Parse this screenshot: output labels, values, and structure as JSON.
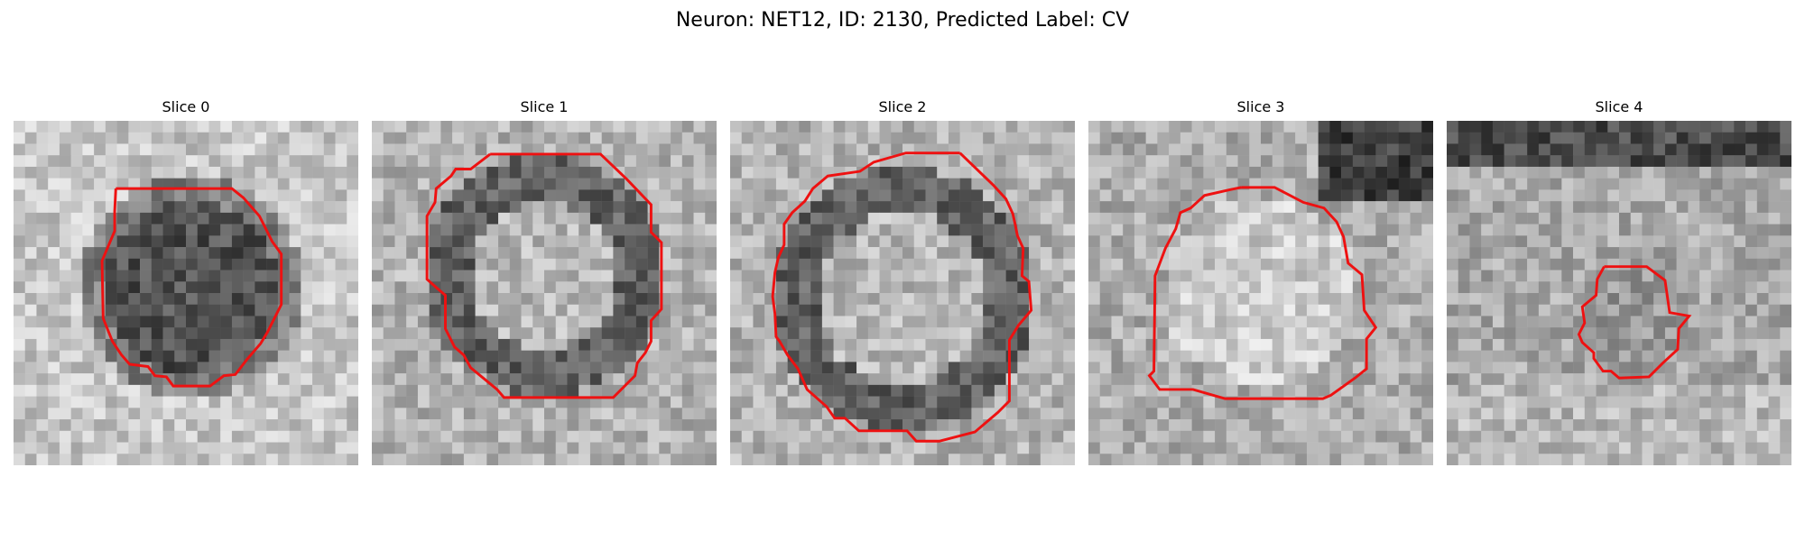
{
  "figure": {
    "title": "Neuron: NET12, ID: 2130, Predicted Label: CV"
  },
  "outline_color": "#ee1111",
  "slices": [
    {
      "title": "Slice 0",
      "shade": "dark-center"
    },
    {
      "title": "Slice 1",
      "shade": "ring"
    },
    {
      "title": "Slice 2",
      "shade": "ring"
    },
    {
      "title": "Slice 3",
      "shade": "bright-center"
    },
    {
      "title": "Slice 4",
      "shade": "small-center"
    }
  ]
}
